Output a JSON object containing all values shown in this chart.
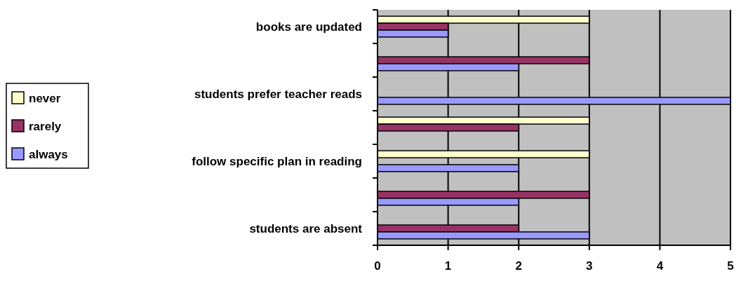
{
  "chart_data": {
    "type": "bar",
    "orientation": "horizontal",
    "categories": [
      "books are updated",
      null,
      "students prefer teacher reads",
      null,
      "follow specific plan in reading",
      null,
      "students are absent"
    ],
    "series": [
      {
        "name": "never",
        "color": "#ffffcc",
        "values": [
          3,
          0,
          0,
          3,
          3,
          0,
          0
        ]
      },
      {
        "name": "rarely",
        "color": "#993366",
        "values": [
          1,
          3,
          0,
          2,
          0,
          3,
          2
        ]
      },
      {
        "name": "always",
        "color": "#9999ff",
        "values": [
          1,
          2,
          5,
          0,
          2,
          2,
          3
        ]
      }
    ],
    "xlim": [
      0,
      5
    ],
    "xticks": [
      0,
      1,
      2,
      3,
      4,
      5
    ],
    "grid": "x",
    "legend": "left"
  }
}
